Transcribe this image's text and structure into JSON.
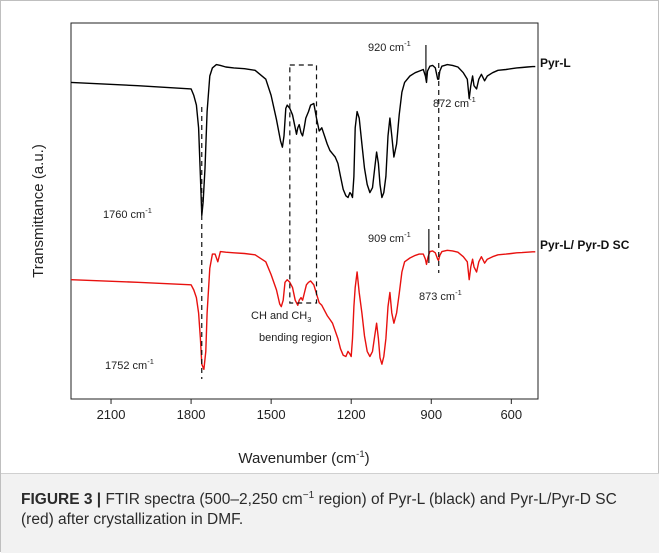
{
  "chart_data": {
    "type": "line",
    "xlabel": "Wavenumber (cm",
    "xlabel_sup": "-1",
    "xlabel_end": ")",
    "ylabel": "Transmittance (a.u.)",
    "x_reversed": true,
    "xlim": [
      2250,
      500
    ],
    "xticks": [
      "2100",
      "1800",
      "1500",
      "1200",
      "900",
      "600"
    ],
    "xtick_values": [
      2100,
      1800,
      1500,
      1200,
      900,
      600
    ],
    "series": [
      {
        "name": "Pyr-L",
        "color": "#000000",
        "offset": 1.0,
        "x": [
          2250,
          2000,
          1800,
          1790,
          1780,
          1772,
          1765,
          1760,
          1755,
          1748,
          1740,
          1730,
          1720,
          1705,
          1690,
          1670,
          1640,
          1600,
          1560,
          1520,
          1500,
          1480,
          1465,
          1458,
          1452,
          1445,
          1440,
          1430,
          1420,
          1410,
          1405,
          1400,
          1395,
          1388,
          1382,
          1376,
          1370,
          1360,
          1352,
          1340,
          1330,
          1320,
          1310,
          1300,
          1290,
          1280,
          1270,
          1260,
          1250,
          1240,
          1230,
          1220,
          1212,
          1205,
          1200,
          1195,
          1190,
          1185,
          1178,
          1170,
          1160,
          1150,
          1140,
          1130,
          1120,
          1112,
          1105,
          1098,
          1092,
          1085,
          1078,
          1070,
          1062,
          1055,
          1048,
          1040,
          1030,
          1020,
          1010,
          1000,
          980,
          960,
          945,
          930,
          922,
          918,
          914,
          905,
          895,
          885,
          876,
          872,
          868,
          860,
          850,
          840,
          820,
          800,
          780,
          765,
          758,
          752,
          745,
          740,
          730,
          722,
          712,
          700,
          690,
          670,
          650,
          620,
          600,
          580,
          560,
          540,
          520,
          510
        ],
        "y": [
          0.88,
          0.86,
          0.84,
          0.8,
          0.74,
          0.6,
          0.3,
          0.06,
          0.14,
          0.35,
          0.7,
          0.92,
          0.97,
          0.99,
          0.985,
          0.975,
          0.97,
          0.965,
          0.955,
          0.9,
          0.8,
          0.65,
          0.52,
          0.48,
          0.55,
          0.72,
          0.74,
          0.72,
          0.68,
          0.6,
          0.56,
          0.6,
          0.62,
          0.57,
          0.55,
          0.6,
          0.66,
          0.7,
          0.74,
          0.75,
          0.66,
          0.58,
          0.6,
          0.55,
          0.5,
          0.46,
          0.44,
          0.42,
          0.38,
          0.3,
          0.22,
          0.18,
          0.17,
          0.2,
          0.19,
          0.17,
          0.3,
          0.6,
          0.7,
          0.66,
          0.5,
          0.35,
          0.25,
          0.2,
          0.23,
          0.35,
          0.45,
          0.38,
          0.25,
          0.17,
          0.2,
          0.3,
          0.55,
          0.66,
          0.55,
          0.42,
          0.5,
          0.68,
          0.82,
          0.88,
          0.92,
          0.94,
          0.95,
          0.96,
          0.92,
          0.88,
          0.95,
          0.98,
          0.985,
          0.97,
          0.9,
          0.9,
          0.95,
          0.98,
          0.985,
          0.99,
          0.985,
          0.975,
          0.94,
          0.9,
          0.78,
          0.86,
          0.92,
          0.86,
          0.84,
          0.9,
          0.93,
          0.89,
          0.92,
          0.94,
          0.955,
          0.96,
          0.965,
          0.97,
          0.972,
          0.975,
          0.978,
          0.978
        ]
      },
      {
        "name": "Pyr-L/ Pyr-D SC",
        "color": "#e8110f",
        "offset": 0.0,
        "x": [
          2250,
          2000,
          1800,
          1790,
          1780,
          1772,
          1765,
          1760,
          1752,
          1745,
          1740,
          1730,
          1720,
          1710,
          1700,
          1690,
          1670,
          1640,
          1600,
          1560,
          1520,
          1500,
          1480,
          1468,
          1462,
          1455,
          1448,
          1440,
          1430,
          1420,
          1410,
          1400,
          1395,
          1388,
          1382,
          1375,
          1368,
          1360,
          1352,
          1340,
          1330,
          1320,
          1310,
          1300,
          1290,
          1280,
          1270,
          1260,
          1250,
          1240,
          1230,
          1220,
          1212,
          1205,
          1200,
          1195,
          1190,
          1185,
          1178,
          1170,
          1160,
          1150,
          1140,
          1130,
          1120,
          1112,
          1105,
          1098,
          1092,
          1085,
          1078,
          1070,
          1062,
          1055,
          1048,
          1040,
          1030,
          1020,
          1010,
          1000,
          980,
          960,
          945,
          930,
          922,
          918,
          912,
          905,
          895,
          885,
          876,
          873,
          868,
          860,
          850,
          840,
          820,
          800,
          780,
          765,
          758,
          752,
          745,
          740,
          730,
          722,
          712,
          700,
          690,
          670,
          650,
          620,
          600,
          580,
          560,
          540,
          520,
          510
        ],
        "y": [
          0.76,
          0.74,
          0.72,
          0.68,
          0.62,
          0.5,
          0.3,
          0.1,
          0.06,
          0.2,
          0.5,
          0.85,
          0.96,
          0.96,
          0.9,
          0.98,
          0.975,
          0.97,
          0.965,
          0.955,
          0.9,
          0.8,
          0.68,
          0.57,
          0.55,
          0.6,
          0.74,
          0.76,
          0.74,
          0.7,
          0.6,
          0.56,
          0.6,
          0.62,
          0.6,
          0.66,
          0.72,
          0.74,
          0.75,
          0.72,
          0.65,
          0.58,
          0.56,
          0.52,
          0.48,
          0.45,
          0.42,
          0.36,
          0.3,
          0.22,
          0.17,
          0.16,
          0.2,
          0.18,
          0.16,
          0.3,
          0.55,
          0.7,
          0.82,
          0.66,
          0.5,
          0.32,
          0.2,
          0.16,
          0.2,
          0.32,
          0.42,
          0.3,
          0.15,
          0.1,
          0.16,
          0.3,
          0.55,
          0.66,
          0.5,
          0.42,
          0.5,
          0.65,
          0.82,
          0.9,
          0.93,
          0.95,
          0.96,
          0.96,
          0.92,
          0.88,
          0.94,
          0.98,
          0.985,
          0.97,
          0.92,
          0.91,
          0.95,
          0.98,
          0.985,
          0.99,
          0.985,
          0.975,
          0.94,
          0.9,
          0.76,
          0.86,
          0.92,
          0.86,
          0.82,
          0.9,
          0.94,
          0.89,
          0.92,
          0.94,
          0.955,
          0.96,
          0.965,
          0.97,
          0.972,
          0.975,
          0.978,
          0.978
        ]
      }
    ],
    "annotations": [
      {
        "id": "ann-920",
        "text": "920 cm",
        "sup": "-1"
      },
      {
        "id": "ann-872",
        "text": "872 cm",
        "sup": "-1"
      },
      {
        "id": "ann-1760",
        "text": "1760 cm",
        "sup": "-1"
      },
      {
        "id": "ann-909",
        "text": "909 cm",
        "sup": "-1"
      },
      {
        "id": "ann-873",
        "text": "873 cm",
        "sup": "-1"
      },
      {
        "id": "ann-1752",
        "text": "1752 cm",
        "sup": "-1"
      }
    ],
    "region_label_line1": "CH and CH",
    "region_label_sub": "3",
    "region_label_line2": "bending region",
    "reference_lines_x": [
      1760,
      872
    ],
    "region_box_x": [
      1430,
      1330
    ],
    "marker_lines_x": [
      920,
      909
    ],
    "grid": false
  },
  "caption": {
    "label": "FIGURE 3 |",
    "text_1": " FTIR spectra (500–2,250 cm",
    "sup": "−1",
    "text_2": " region) of Pyr-L (black) and Pyr-L/Pyr-D SC (red) after crystallization in DMF."
  }
}
